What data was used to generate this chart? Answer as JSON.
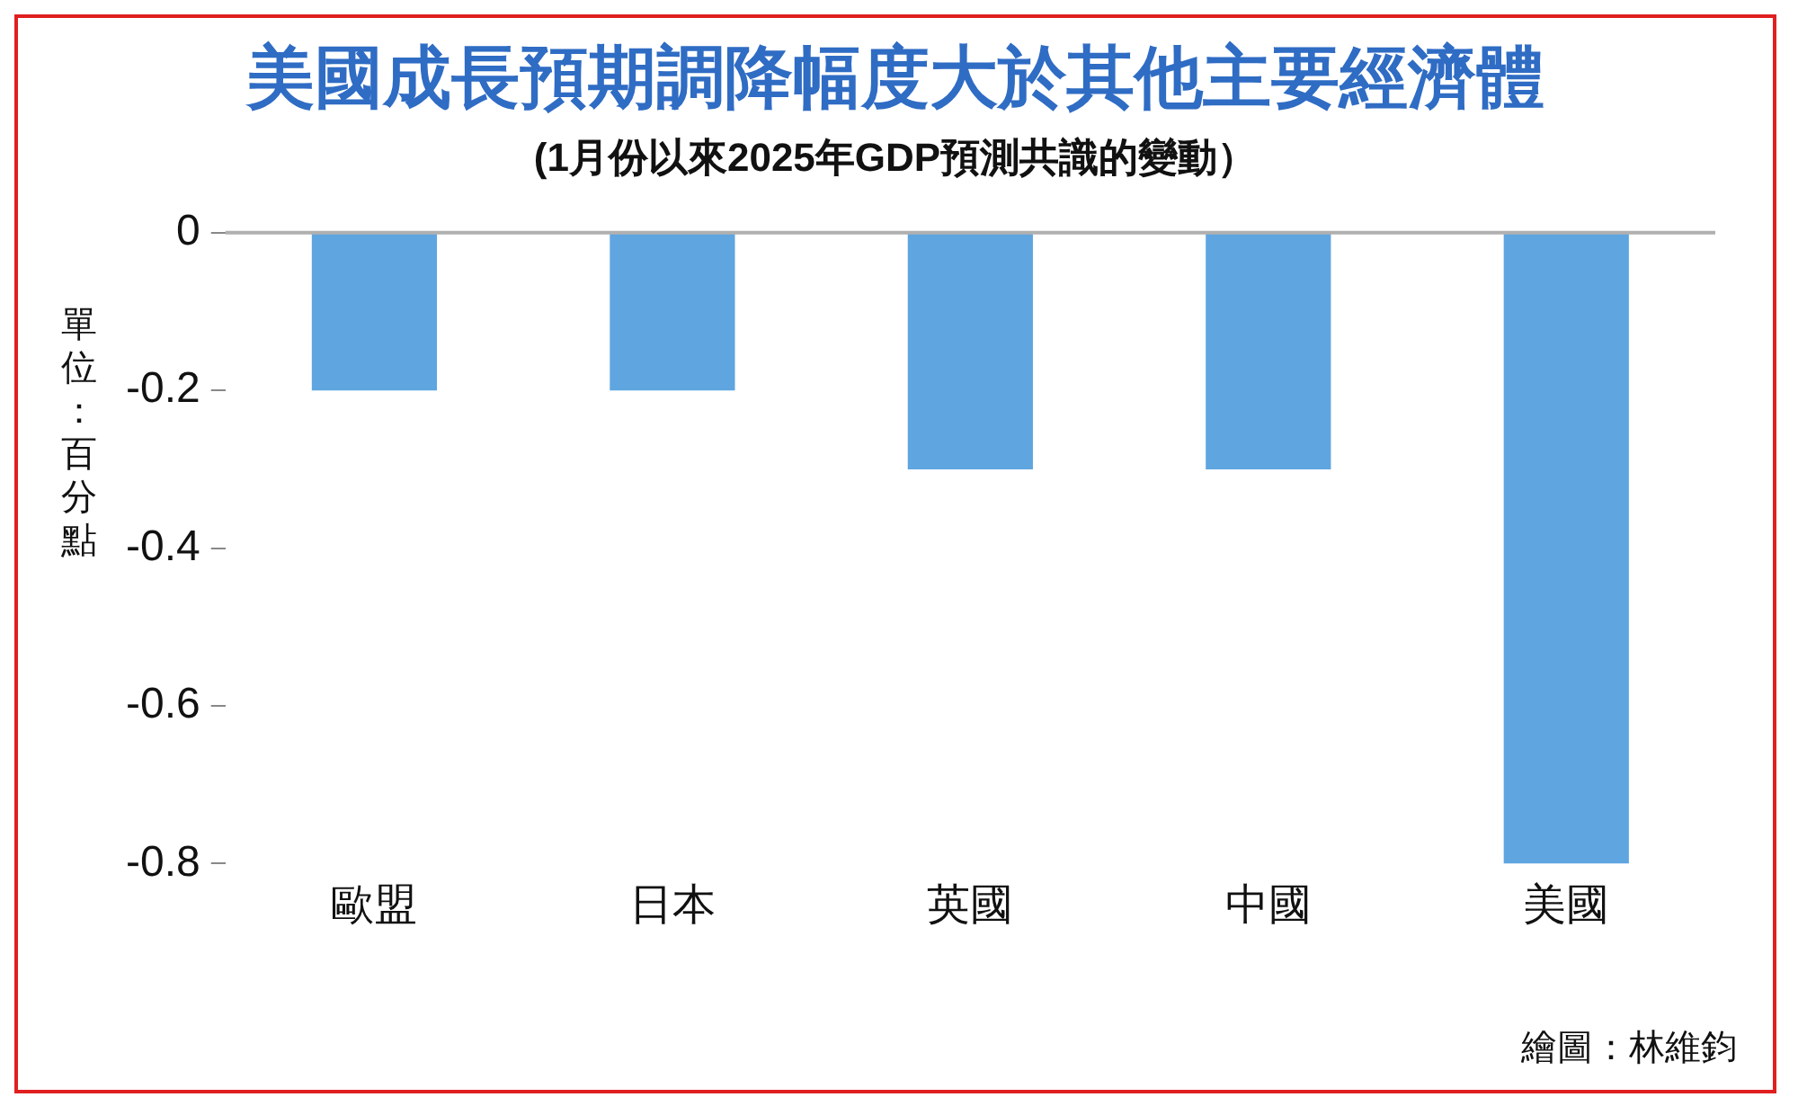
{
  "chart_data": {
    "type": "bar",
    "title": "美國成長預期調降幅度大於其他主要經濟體",
    "subtitle": "(1月份以來2025年GDP預測共識的變動）",
    "ylabel": "單位：百分點",
    "categories": [
      "歐盟",
      "日本",
      "英國",
      "中國",
      "美國"
    ],
    "values": [
      -0.2,
      -0.2,
      -0.3,
      -0.3,
      -0.8
    ],
    "color": "#5fa5e0",
    "ylim": [
      -0.8,
      0
    ],
    "yticks": [
      0,
      -0.2,
      -0.4,
      -0.6,
      -0.8
    ],
    "grid": false,
    "legend": false,
    "annotations": [
      "繪圖：林維鈞"
    ]
  }
}
